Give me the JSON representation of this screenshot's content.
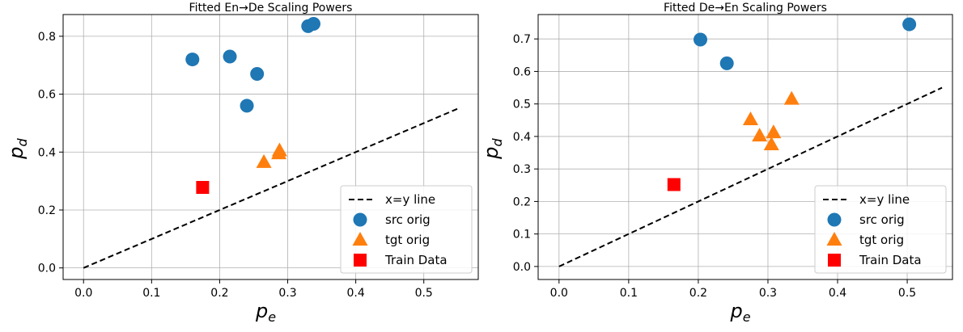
{
  "chart_data": [
    {
      "type": "scatter",
      "title": "Fitted En→De Scaling Powers",
      "xlabel": "p",
      "xlabel_sub": "e",
      "ylabel": "p",
      "ylabel_sub": "d",
      "xlim": [
        -0.03,
        0.58
      ],
      "ylim": [
        -0.04,
        0.875
      ],
      "xticks": [
        0.0,
        0.1,
        0.2,
        0.3,
        0.4,
        0.5
      ],
      "xtick_labels": [
        "0.0",
        "0.1",
        "0.2",
        "0.3",
        "0.4",
        "0.5"
      ],
      "yticks": [
        0.0,
        0.2,
        0.4,
        0.6,
        0.8
      ],
      "ytick_labels": [
        "0.0",
        "0.2",
        "0.4",
        "0.6",
        "0.8"
      ],
      "grid": true,
      "legend_position": "lower-right",
      "series": [
        {
          "name": "x=y line",
          "kind": "line",
          "color": "#000000",
          "points": [
            [
              0.0,
              0.0
            ],
            [
              0.55,
              0.55
            ]
          ]
        },
        {
          "name": "src orig",
          "kind": "circle",
          "color": "#1f77b4",
          "points": [
            [
              0.16,
              0.72
            ],
            [
              0.215,
              0.73
            ],
            [
              0.255,
              0.67
            ],
            [
              0.24,
              0.56
            ],
            [
              0.33,
              0.835
            ],
            [
              0.338,
              0.843
            ]
          ]
        },
        {
          "name": "tgt orig",
          "kind": "triangle",
          "color": "#ff7f0e",
          "points": [
            [
              0.265,
              0.365
            ],
            [
              0.287,
              0.395
            ],
            [
              0.288,
              0.405
            ]
          ]
        },
        {
          "name": "Train Data",
          "kind": "square",
          "color": "#ff0000",
          "points": [
            [
              0.175,
              0.278
            ]
          ]
        }
      ]
    },
    {
      "type": "scatter",
      "title": "Fitted De→En Scaling Powers",
      "xlabel": "p",
      "xlabel_sub": "e",
      "ylabel": "p",
      "ylabel_sub": "d",
      "xlim": [
        -0.03,
        0.565
      ],
      "ylim": [
        -0.04,
        0.775
      ],
      "xticks": [
        0.0,
        0.1,
        0.2,
        0.3,
        0.4,
        0.5
      ],
      "xtick_labels": [
        "0.0",
        "0.1",
        "0.2",
        "0.3",
        "0.4",
        "0.5"
      ],
      "yticks": [
        0.0,
        0.1,
        0.2,
        0.3,
        0.4,
        0.5,
        0.6,
        0.7
      ],
      "ytick_labels": [
        "0.0",
        "0.1",
        "0.2",
        "0.3",
        "0.4",
        "0.5",
        "0.6",
        "0.7"
      ],
      "grid": true,
      "legend_position": "lower-right",
      "series": [
        {
          "name": "x=y line",
          "kind": "line",
          "color": "#000000",
          "points": [
            [
              0.0,
              0.0
            ],
            [
              0.55,
              0.55
            ]
          ]
        },
        {
          "name": "src orig",
          "kind": "circle",
          "color": "#1f77b4",
          "points": [
            [
              0.203,
              0.698
            ],
            [
              0.241,
              0.625
            ],
            [
              0.503,
              0.745
            ]
          ]
        },
        {
          "name": "tgt orig",
          "kind": "triangle",
          "color": "#ff7f0e",
          "points": [
            [
              0.275,
              0.452
            ],
            [
              0.288,
              0.402
            ],
            [
              0.305,
              0.375
            ],
            [
              0.308,
              0.412
            ],
            [
              0.334,
              0.515
            ]
          ]
        },
        {
          "name": "Train Data",
          "kind": "square",
          "color": "#ff0000",
          "points": [
            [
              0.165,
              0.252
            ]
          ]
        }
      ]
    }
  ]
}
